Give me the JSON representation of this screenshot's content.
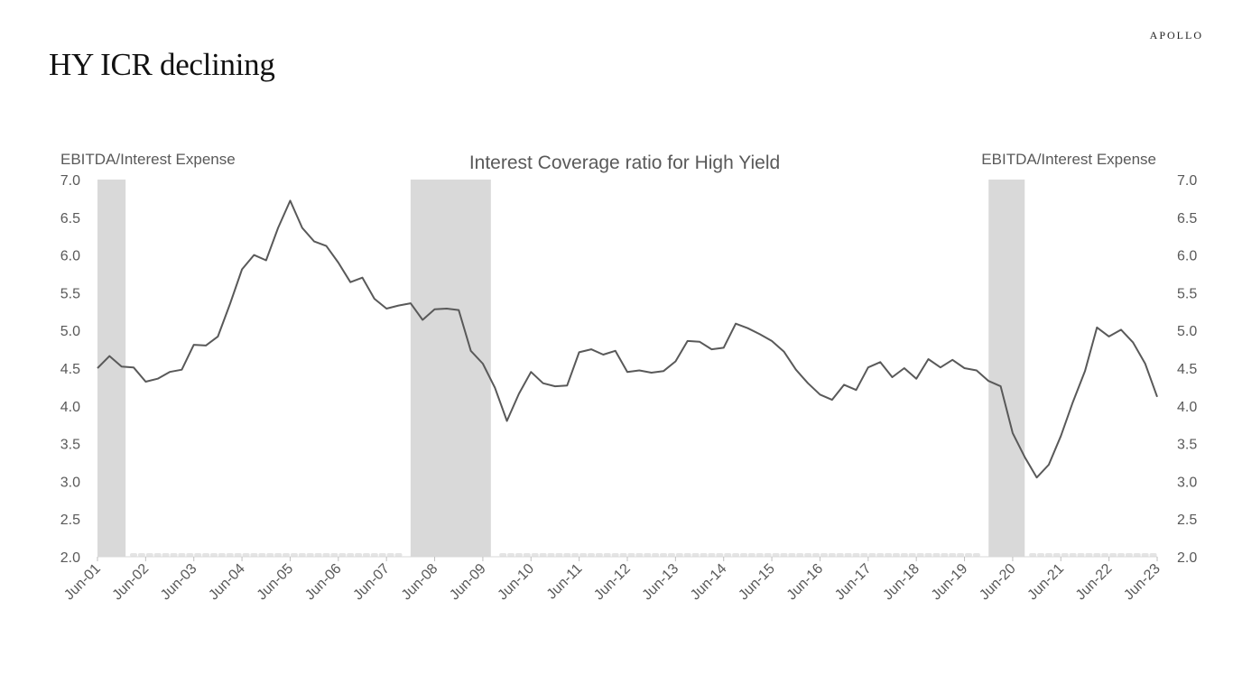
{
  "header": {
    "title": "HY ICR declining",
    "brand": "APOLLO"
  },
  "colors": {
    "line": "#595959",
    "recession": "#d9d9d9",
    "text": "#595959"
  },
  "chart_data": {
    "type": "line",
    "title": "Interest Coverage ratio for High Yield",
    "ylabel_left": "EBITDA/Interest Expense",
    "ylabel_right": "EBITDA/Interest Expense",
    "ylim": [
      2.0,
      7.0
    ],
    "y_ticks": [
      "2.0",
      "2.5",
      "3.0",
      "3.5",
      "4.0",
      "4.5",
      "5.0",
      "5.5",
      "6.0",
      "6.5",
      "7.0"
    ],
    "x_range": [
      "2001-06",
      "2023-06"
    ],
    "x_ticks": [
      "Jun-01",
      "Jun-02",
      "Jun-03",
      "Jun-04",
      "Jun-05",
      "Jun-06",
      "Jun-07",
      "Jun-08",
      "Jun-09",
      "Jun-10",
      "Jun-11",
      "Jun-12",
      "Jun-13",
      "Jun-14",
      "Jun-15",
      "Jun-16",
      "Jun-17",
      "Jun-18",
      "Jun-19",
      "Jun-20",
      "Jun-21",
      "Jun-22",
      "Jun-23"
    ],
    "grid": false,
    "legend": "none",
    "recessions": [
      {
        "start": "2001-06",
        "end": "2002-01"
      },
      {
        "start": "2007-12",
        "end": "2009-08"
      },
      {
        "start": "2019-12",
        "end": "2020-09"
      }
    ],
    "series": [
      {
        "values": [
          [
            "2001-06",
            4.5
          ],
          [
            "2001-09",
            4.66
          ],
          [
            "2001-12",
            4.52
          ],
          [
            "2002-03",
            4.51
          ],
          [
            "2002-06",
            4.32
          ],
          [
            "2002-09",
            4.36
          ],
          [
            "2002-12",
            4.45
          ],
          [
            "2003-03",
            4.48
          ],
          [
            "2003-06",
            4.81
          ],
          [
            "2003-09",
            4.8
          ],
          [
            "2003-12",
            4.92
          ],
          [
            "2004-03",
            5.35
          ],
          [
            "2004-06",
            5.81
          ],
          [
            "2004-09",
            6.0
          ],
          [
            "2004-12",
            5.93
          ],
          [
            "2005-03",
            6.36
          ],
          [
            "2005-06",
            6.72
          ],
          [
            "2005-09",
            6.36
          ],
          [
            "2005-12",
            6.18
          ],
          [
            "2006-03",
            6.12
          ],
          [
            "2006-06",
            5.9
          ],
          [
            "2006-09",
            5.64
          ],
          [
            "2006-12",
            5.7
          ],
          [
            "2007-03",
            5.42
          ],
          [
            "2007-06",
            5.29
          ],
          [
            "2007-09",
            5.33
          ],
          [
            "2007-12",
            5.36
          ],
          [
            "2008-03",
            5.14
          ],
          [
            "2008-06",
            5.28
          ],
          [
            "2008-09",
            5.29
          ],
          [
            "2008-12",
            5.27
          ],
          [
            "2009-03",
            4.73
          ],
          [
            "2009-06",
            4.56
          ],
          [
            "2009-09",
            4.24
          ],
          [
            "2009-12",
            3.8
          ],
          [
            "2010-03",
            4.16
          ],
          [
            "2010-06",
            4.45
          ],
          [
            "2010-09",
            4.3
          ],
          [
            "2010-12",
            4.26
          ],
          [
            "2011-03",
            4.27
          ],
          [
            "2011-06",
            4.71
          ],
          [
            "2011-09",
            4.75
          ],
          [
            "2011-12",
            4.68
          ],
          [
            "2012-03",
            4.73
          ],
          [
            "2012-06",
            4.45
          ],
          [
            "2012-09",
            4.47
          ],
          [
            "2012-12",
            4.44
          ],
          [
            "2013-03",
            4.46
          ],
          [
            "2013-06",
            4.59
          ],
          [
            "2013-09",
            4.86
          ],
          [
            "2013-12",
            4.85
          ],
          [
            "2014-03",
            4.75
          ],
          [
            "2014-06",
            4.77
          ],
          [
            "2014-09",
            5.09
          ],
          [
            "2014-12",
            5.03
          ],
          [
            "2015-03",
            4.95
          ],
          [
            "2015-06",
            4.86
          ],
          [
            "2015-09",
            4.72
          ],
          [
            "2015-12",
            4.48
          ],
          [
            "2016-03",
            4.3
          ],
          [
            "2016-06",
            4.15
          ],
          [
            "2016-09",
            4.08
          ],
          [
            "2016-12",
            4.28
          ],
          [
            "2017-03",
            4.21
          ],
          [
            "2017-06",
            4.51
          ],
          [
            "2017-09",
            4.58
          ],
          [
            "2017-12",
            4.38
          ],
          [
            "2018-03",
            4.5
          ],
          [
            "2018-06",
            4.36
          ],
          [
            "2018-09",
            4.62
          ],
          [
            "2018-12",
            4.51
          ],
          [
            "2019-03",
            4.61
          ],
          [
            "2019-06",
            4.5
          ],
          [
            "2019-09",
            4.47
          ],
          [
            "2019-12",
            4.33
          ],
          [
            "2020-03",
            4.26
          ],
          [
            "2020-06",
            3.64
          ],
          [
            "2020-09",
            3.32
          ],
          [
            "2020-12",
            3.05
          ],
          [
            "2021-03",
            3.22
          ],
          [
            "2021-06",
            3.6
          ],
          [
            "2021-09",
            4.05
          ],
          [
            "2021-12",
            4.46
          ],
          [
            "2022-03",
            5.04
          ],
          [
            "2022-06",
            4.92
          ],
          [
            "2022-09",
            5.01
          ],
          [
            "2022-12",
            4.84
          ],
          [
            "2023-03",
            4.56
          ],
          [
            "2023-06",
            4.12
          ]
        ]
      }
    ]
  }
}
